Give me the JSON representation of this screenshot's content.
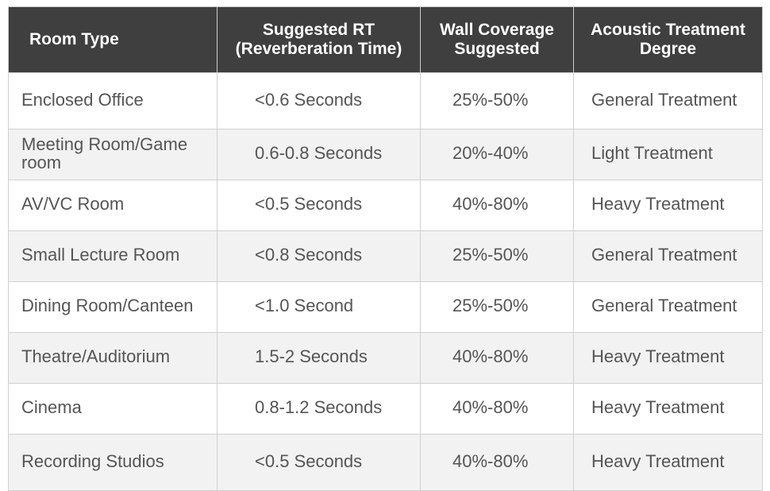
{
  "table": {
    "header": [
      "Room Type",
      "Suggested RT (Reverberation Time)",
      "Wall Coverage Suggested",
      "Acoustic Treatment Degree"
    ],
    "rows": [
      [
        "Enclosed Office",
        "<0.6 Seconds",
        "25%-50%",
        "General Treatment"
      ],
      [
        "Meeting Room/Game room",
        "0.6-0.8 Seconds",
        "20%-40%",
        "Light Treatment"
      ],
      [
        "AV/VC Room",
        "<0.5 Seconds",
        "40%-80%",
        "Heavy Treatment"
      ],
      [
        "Small Lecture Room",
        "<0.8 Seconds",
        "25%-50%",
        "General Treatment"
      ],
      [
        "Dining Room/Canteen",
        "<1.0 Second",
        "25%-50%",
        "General Treatment"
      ],
      [
        "Theatre/Auditorium",
        "1.5-2 Seconds",
        "40%-80%",
        "Heavy Treatment"
      ],
      [
        "Cinema",
        "0.8-1.2 Seconds",
        "40%-80%",
        "Heavy Treatment"
      ],
      [
        "Recording Studios",
        "<0.5 Seconds",
        "40%-80%",
        "Heavy Treatment"
      ]
    ]
  }
}
